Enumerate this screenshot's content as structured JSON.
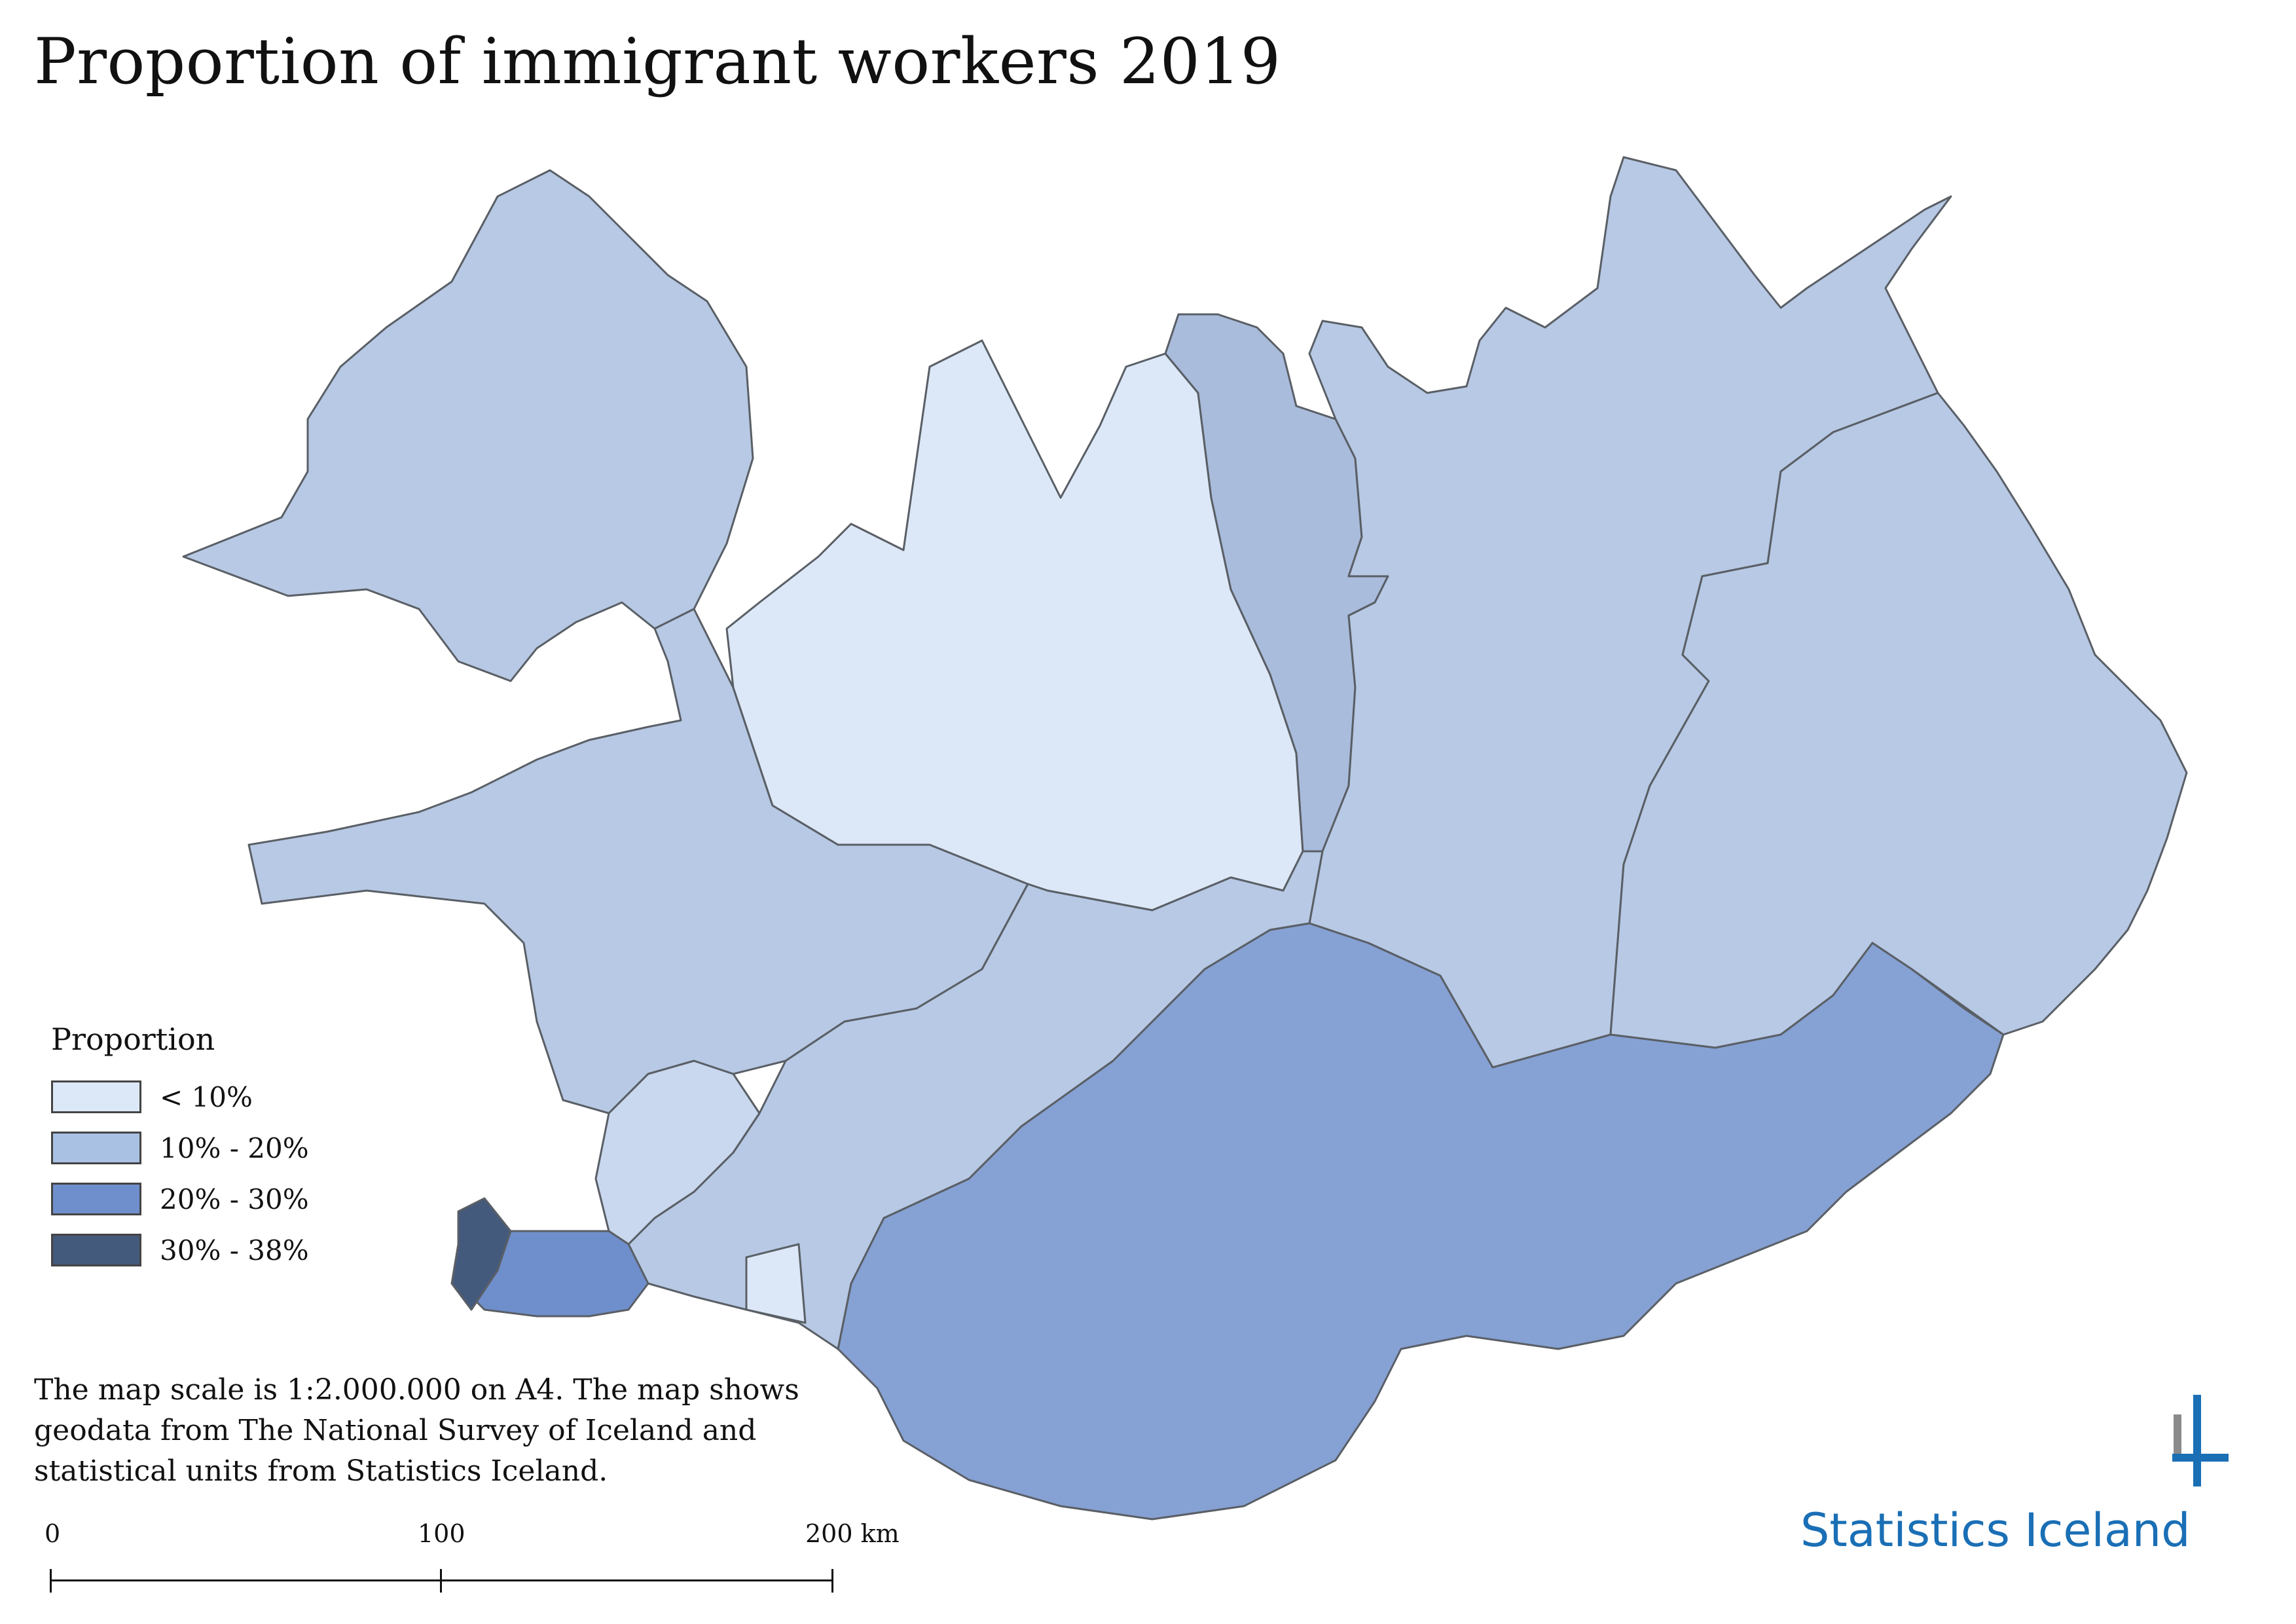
{
  "title": "Proportion of immigrant workers 2019",
  "legend": {
    "title": "Proportion",
    "items": [
      {
        "label": "< 10%",
        "color": "#dce8f7"
      },
      {
        "label": "10% - 20%",
        "color": "#a9c1e3"
      },
      {
        "label": "20% - 30%",
        "color": "#6f8fcc"
      },
      {
        "label": "30% - 38%",
        "color": "#445a7c"
      }
    ]
  },
  "note": "The map scale is 1:2.000.000 on A4. The map shows geodata from The National Survey of Iceland and statistical units from Statistics Iceland.",
  "scale": {
    "labels": [
      "0",
      "100",
      "200 km"
    ]
  },
  "logo": {
    "text": "Statistics Iceland",
    "color": "#1a6fb5"
  },
  "colors": {
    "border": "#555555",
    "very_low": "#dce8f7",
    "low": "#b7c9e4",
    "mid": "#86a1d3",
    "high": "#445a7c"
  }
}
